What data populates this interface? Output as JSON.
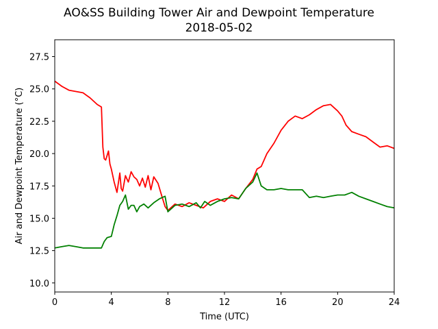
{
  "chart_data": {
    "type": "line",
    "title": "AO&SS Building Tower Air and Dewpoint Temperature",
    "subtitle": "2018-05-02",
    "xlabel": "Time (UTC)",
    "ylabel": "Air and Dewpoint Temperature (°C)",
    "xlim": [
      0,
      24
    ],
    "ylim": [
      9.3,
      28.8
    ],
    "xticks": [
      0,
      4,
      8,
      12,
      16,
      20,
      24
    ],
    "yticks": [
      10.0,
      12.5,
      15.0,
      17.5,
      20.0,
      22.5,
      25.0,
      27.5
    ],
    "grid": false,
    "series": [
      {
        "color": "#ff0000",
        "x": [
          0,
          0.5,
          1,
          1.5,
          2,
          2.5,
          3,
          3.3,
          3.4,
          3.5,
          3.6,
          3.8,
          3.9,
          4.0,
          4.2,
          4.4,
          4.6,
          4.7,
          4.8,
          5.0,
          5.2,
          5.4,
          5.6,
          5.8,
          6.0,
          6.2,
          6.4,
          6.6,
          6.8,
          7.0,
          7.3,
          7.6,
          7.8,
          8.0,
          8.5,
          9,
          9.5,
          10,
          10.5,
          11,
          11.5,
          12,
          12.5,
          13,
          13.5,
          14,
          14.3,
          14.6,
          15,
          15.5,
          16,
          16.5,
          17,
          17.5,
          18,
          18.5,
          19,
          19.5,
          20,
          20.3,
          20.6,
          21,
          21.5,
          22,
          22.5,
          23,
          23.5,
          24
        ],
        "values": [
          25.6,
          25.2,
          24.9,
          24.8,
          24.7,
          24.3,
          23.8,
          23.6,
          20.5,
          19.6,
          19.5,
          20.2,
          19.2,
          18.8,
          17.8,
          17.0,
          18.5,
          17.3,
          17.1,
          18.3,
          17.8,
          18.6,
          18.2,
          18.0,
          17.5,
          18.1,
          17.4,
          18.3,
          17.2,
          18.2,
          17.7,
          16.6,
          15.9,
          15.6,
          16.1,
          15.9,
          16.2,
          16.0,
          15.8,
          16.3,
          16.5,
          16.3,
          16.8,
          16.5,
          17.3,
          18.0,
          18.8,
          19.0,
          20.0,
          20.8,
          21.8,
          22.5,
          22.9,
          22.7,
          23.0,
          23.4,
          23.7,
          23.8,
          23.3,
          22.9,
          22.2,
          21.7,
          21.5,
          21.3,
          20.9,
          20.5,
          20.6,
          20.4
        ]
      },
      {
        "color": "#008000",
        "x": [
          0,
          0.5,
          1,
          1.5,
          2,
          2.5,
          3,
          3.3,
          3.5,
          3.7,
          4.0,
          4.2,
          4.4,
          4.6,
          4.8,
          5.0,
          5.2,
          5.4,
          5.6,
          5.8,
          6.0,
          6.3,
          6.6,
          7.0,
          7.4,
          7.8,
          8.0,
          8.5,
          9,
          9.5,
          10,
          10.3,
          10.6,
          11,
          11.5,
          12,
          12.5,
          13,
          13.5,
          14,
          14.3,
          14.6,
          15,
          15.5,
          16,
          16.5,
          17,
          17.5,
          18,
          18.5,
          19,
          19.5,
          20,
          20.5,
          21,
          21.5,
          22,
          22.5,
          23,
          23.5,
          24
        ],
        "values": [
          12.7,
          12.8,
          12.9,
          12.8,
          12.7,
          12.7,
          12.7,
          12.7,
          13.2,
          13.5,
          13.6,
          14.5,
          15.2,
          16.0,
          16.3,
          16.8,
          15.7,
          16.0,
          16.0,
          15.5,
          15.9,
          16.1,
          15.8,
          16.2,
          16.5,
          16.7,
          15.5,
          16.0,
          16.1,
          15.9,
          16.2,
          15.8,
          16.3,
          16.0,
          16.3,
          16.5,
          16.6,
          16.5,
          17.3,
          17.8,
          18.5,
          17.5,
          17.2,
          17.2,
          17.3,
          17.2,
          17.2,
          17.2,
          16.6,
          16.7,
          16.6,
          16.7,
          16.8,
          16.8,
          17.0,
          16.7,
          16.5,
          16.3,
          16.1,
          15.9,
          15.8
        ]
      }
    ]
  }
}
